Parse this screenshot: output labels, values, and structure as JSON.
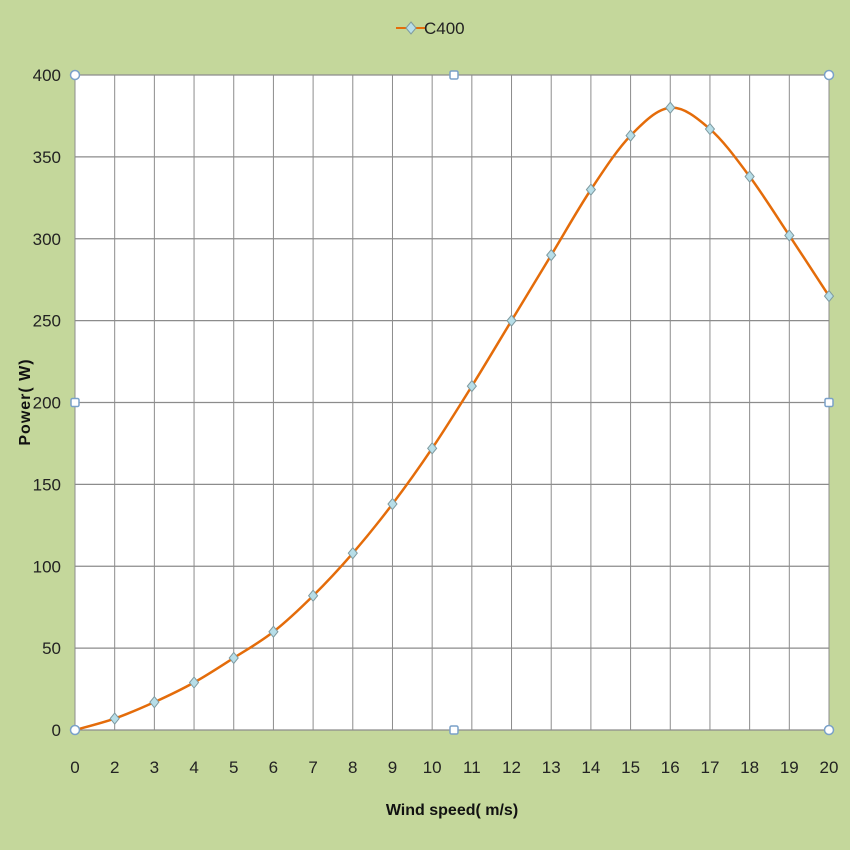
{
  "chart_data": {
    "type": "line",
    "x_ticks": [
      0,
      2,
      3,
      4,
      5,
      6,
      7,
      8,
      9,
      10,
      11,
      12,
      13,
      14,
      15,
      16,
      17,
      18,
      19,
      20
    ],
    "y_ticks": [
      0,
      50,
      100,
      150,
      200,
      250,
      300,
      350,
      400
    ],
    "ylim": [
      0,
      400
    ],
    "xlabel": "Wind speed( m/s)",
    "ylabel": "Power( W)",
    "grid": true,
    "legend_position": "top-center",
    "series": [
      {
        "name": "C400",
        "color": "#e46c0a",
        "marker_color": "#b7dee8",
        "marker": "diamond",
        "smooth": true,
        "values": [
          0,
          7,
          17,
          29,
          44,
          60,
          82,
          108,
          138,
          172,
          210,
          250,
          290,
          330,
          363,
          380,
          367,
          338,
          302,
          265
        ]
      }
    ],
    "colors": {
      "background": "#c4d79b",
      "plot_area": "#ffffff",
      "grid": "#8c8c8c"
    }
  }
}
